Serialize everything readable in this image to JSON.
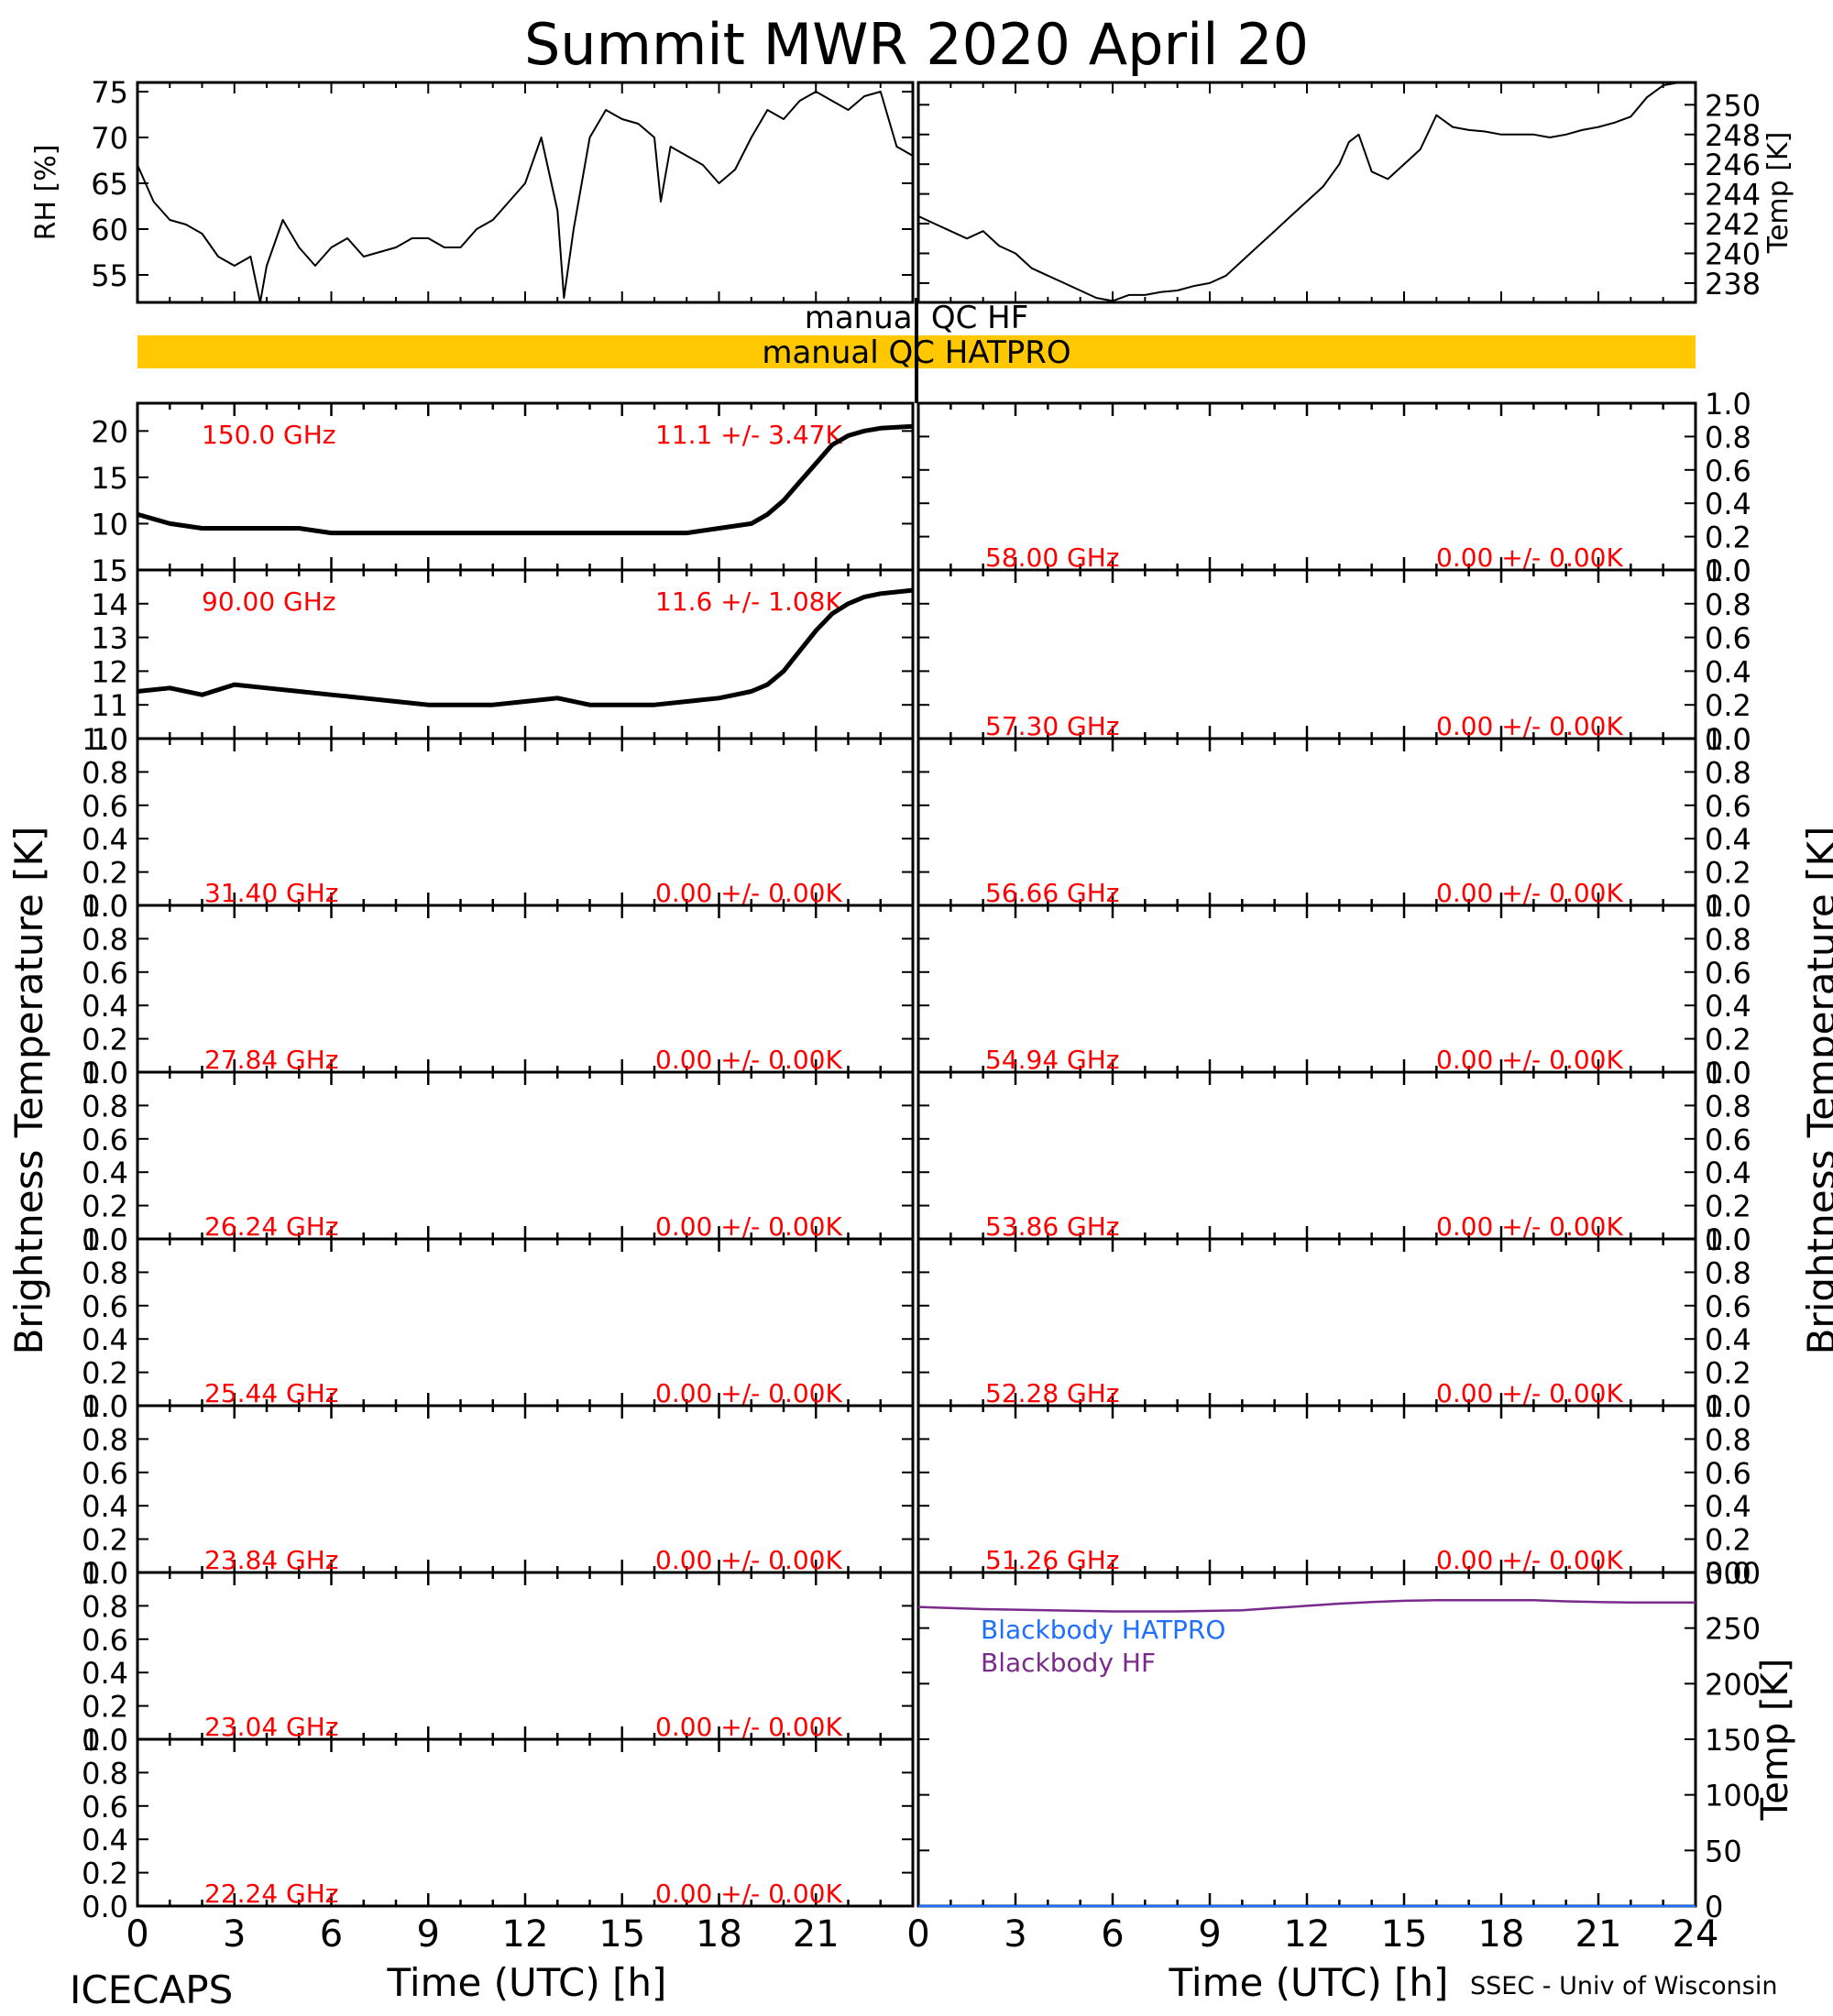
{
  "title": "Summit MWR 2020 April 20",
  "footer": {
    "left": "ICECAPS",
    "right": "SSEC - Univ of Wisconsin"
  },
  "colors": {
    "axis": "#000000",
    "label_red": "#ff0000",
    "qc_bar": "#ffc800",
    "bb_hatpro": "#1e6fff",
    "bb_hf": "#7a2a8a"
  },
  "qc": {
    "hf": "manual QC HF",
    "hatpro": "manual QC HATPRO"
  },
  "axes": {
    "time_label": "Time (UTC) [h]",
    "time_ticks": [
      "0",
      "3",
      "6",
      "9",
      "12",
      "15",
      "18",
      "21",
      "24"
    ],
    "tb_label": "Brightness Temperature [K]",
    "rh_label": "RH [%]",
    "temp_label": "Temp [K]"
  },
  "chart_data": [
    {
      "id": "rh",
      "type": "line",
      "ylabel": "RH [%]",
      "xlim": [
        0,
        24
      ],
      "ylim": [
        52,
        76
      ],
      "yticks": [
        55,
        60,
        65,
        70,
        75
      ],
      "x": [
        0,
        0.5,
        1,
        1.5,
        2,
        2.5,
        3,
        3.5,
        3.8,
        4,
        4.5,
        5,
        5.5,
        6,
        6.5,
        7,
        7.5,
        8,
        8.5,
        9,
        9.5,
        10,
        10.5,
        11,
        11.5,
        12,
        12.5,
        13,
        13.2,
        13.5,
        14,
        14.5,
        15,
        15.5,
        16,
        16.2,
        16.5,
        17,
        17.5,
        18,
        18.5,
        19,
        19.5,
        20,
        20.5,
        21,
        21.5,
        22,
        22.5,
        23,
        23.5,
        24
      ],
      "y": [
        67,
        63,
        61,
        60.5,
        59.5,
        57,
        56,
        57,
        52,
        56,
        61,
        58,
        56,
        58,
        59,
        57,
        57.5,
        58,
        59,
        59,
        58,
        58,
        60,
        61,
        63,
        65,
        70,
        62,
        52.5,
        60,
        70,
        73,
        72,
        71.5,
        70,
        63,
        69,
        68,
        67,
        65,
        66.5,
        70,
        73,
        72,
        74,
        75,
        74,
        73,
        74.5,
        75,
        69,
        68
      ]
    },
    {
      "id": "temp_air",
      "type": "line",
      "ylabel": "Temp [K]",
      "xlim": [
        0,
        24
      ],
      "ylim": [
        236.7,
        251.5
      ],
      "yticks": [
        238,
        240,
        242,
        244,
        246,
        248,
        250
      ],
      "x": [
        0,
        0.5,
        1,
        1.5,
        2,
        2.5,
        3,
        3.5,
        4,
        4.5,
        5,
        5.5,
        6,
        6.5,
        7,
        7.5,
        8,
        8.5,
        9,
        9.5,
        10,
        10.5,
        11,
        11.5,
        12,
        12.5,
        13,
        13.3,
        13.6,
        14,
        14.5,
        15,
        15.5,
        16,
        16.5,
        17,
        17.5,
        18,
        18.5,
        19,
        19.5,
        20,
        20.5,
        21,
        21.5,
        22,
        22.5,
        23,
        23.5,
        24
      ],
      "y": [
        242.5,
        242,
        241.5,
        241,
        241.5,
        240.5,
        240,
        239,
        238.5,
        238,
        237.5,
        237,
        236.8,
        237.2,
        237.2,
        237.4,
        237.5,
        237.8,
        238,
        238.5,
        239.5,
        240.5,
        241.5,
        242.5,
        243.5,
        244.5,
        246,
        247.5,
        248,
        245.5,
        245,
        246,
        247,
        249.3,
        248.5,
        248.3,
        248.2,
        248,
        248,
        248,
        247.8,
        248,
        248.3,
        248.5,
        248.8,
        249.2,
        250.5,
        251.3,
        251.5,
        251.5
      ]
    },
    {
      "id": "tb_150",
      "type": "line",
      "freq": "150.0 GHz",
      "stat": "11.1 +/- 3.47K",
      "ylim": [
        5,
        23
      ],
      "yticks": [
        10,
        15,
        20
      ],
      "x": [
        0,
        1,
        2,
        3,
        4,
        5,
        6,
        7,
        8,
        9,
        10,
        11,
        12,
        13,
        14,
        15,
        16,
        17,
        18,
        19,
        19.5,
        20,
        20.5,
        21,
        21.5,
        22,
        22.5,
        23,
        24
      ],
      "y": [
        11,
        10,
        9.5,
        9.5,
        9.5,
        9.5,
        9,
        9,
        9,
        9,
        9,
        9,
        9,
        9,
        9,
        9,
        9,
        9,
        9.5,
        10,
        11,
        12.5,
        14.5,
        16.5,
        18.5,
        19.5,
        20,
        20.3,
        20.5
      ]
    },
    {
      "id": "tb_58",
      "type": "line",
      "freq": "58.00 GHz",
      "stat": "0.00 +/- 0.00K",
      "ylim": [
        0,
        1
      ],
      "yticks": [
        0,
        0.2,
        0.4,
        0.6,
        0.8,
        1.0
      ],
      "x": [],
      "y": []
    },
    {
      "id": "tb_90",
      "type": "line",
      "freq": "90.00 GHz",
      "stat": "11.6 +/- 1.08K",
      "ylim": [
        10,
        15
      ],
      "yticks": [
        10,
        11,
        12,
        13,
        14,
        15
      ],
      "x": [
        0,
        1,
        2,
        3,
        4,
        5,
        6,
        7,
        8,
        9,
        10,
        11,
        12,
        13,
        14,
        15,
        16,
        17,
        18,
        18.5,
        19,
        19.5,
        20,
        20.5,
        21,
        21.5,
        22,
        22.5,
        23,
        24
      ],
      "y": [
        11.4,
        11.5,
        11.3,
        11.6,
        11.5,
        11.4,
        11.3,
        11.2,
        11.1,
        11,
        11,
        11,
        11.1,
        11.2,
        11,
        11,
        11,
        11.1,
        11.2,
        11.3,
        11.4,
        11.6,
        12,
        12.6,
        13.2,
        13.7,
        14,
        14.2,
        14.3,
        14.4
      ]
    },
    {
      "id": "tb_57",
      "type": "line",
      "freq": "57.30 GHz",
      "stat": "0.00 +/- 0.00K",
      "ylim": [
        0,
        1
      ],
      "yticks": [
        0,
        0.2,
        0.4,
        0.6,
        0.8,
        1.0
      ],
      "x": [],
      "y": []
    },
    {
      "id": "tb_31",
      "type": "line",
      "freq": "31.40 GHz",
      "stat": "0.00 +/- 0.00K",
      "ylim": [
        0,
        1
      ],
      "yticks": [
        0,
        0.2,
        0.4,
        0.6,
        0.8,
        1.0
      ],
      "x": [],
      "y": []
    },
    {
      "id": "tb_56",
      "type": "line",
      "freq": "56.66 GHz",
      "stat": "0.00 +/- 0.00K",
      "ylim": [
        0,
        1
      ],
      "yticks": [
        0,
        0.2,
        0.4,
        0.6,
        0.8,
        1.0
      ],
      "x": [],
      "y": []
    },
    {
      "id": "tb_27",
      "type": "line",
      "freq": "27.84 GHz",
      "stat": "0.00 +/- 0.00K",
      "ylim": [
        0,
        1
      ],
      "yticks": [
        0,
        0.2,
        0.4,
        0.6,
        0.8,
        1.0
      ],
      "x": [],
      "y": []
    },
    {
      "id": "tb_54",
      "type": "line",
      "freq": "54.94 GHz",
      "stat": "0.00 +/- 0.00K",
      "ylim": [
        0,
        1
      ],
      "yticks": [
        0,
        0.2,
        0.4,
        0.6,
        0.8,
        1.0
      ],
      "x": [],
      "y": []
    },
    {
      "id": "tb_26",
      "type": "line",
      "freq": "26.24 GHz",
      "stat": "0.00 +/- 0.00K",
      "ylim": [
        0,
        1
      ],
      "yticks": [
        0,
        0.2,
        0.4,
        0.6,
        0.8,
        1.0
      ],
      "x": [],
      "y": []
    },
    {
      "id": "tb_53",
      "type": "line",
      "freq": "53.86 GHz",
      "stat": "0.00 +/- 0.00K",
      "ylim": [
        0,
        1
      ],
      "yticks": [
        0,
        0.2,
        0.4,
        0.6,
        0.8,
        1.0
      ],
      "x": [],
      "y": []
    },
    {
      "id": "tb_25",
      "type": "line",
      "freq": "25.44 GHz",
      "stat": "0.00 +/- 0.00K",
      "ylim": [
        0,
        1
      ],
      "yticks": [
        0,
        0.2,
        0.4,
        0.6,
        0.8,
        1.0
      ],
      "x": [],
      "y": []
    },
    {
      "id": "tb_52",
      "type": "line",
      "freq": "52.28 GHz",
      "stat": "0.00 +/- 0.00K",
      "ylim": [
        0,
        1
      ],
      "yticks": [
        0,
        0.2,
        0.4,
        0.6,
        0.8,
        1.0
      ],
      "x": [],
      "y": []
    },
    {
      "id": "tb_23_84",
      "type": "line",
      "freq": "23.84 GHz",
      "stat": "0.00 +/- 0.00K",
      "ylim": [
        0,
        1
      ],
      "yticks": [
        0,
        0.2,
        0.4,
        0.6,
        0.8,
        1.0
      ],
      "x": [],
      "y": []
    },
    {
      "id": "tb_51",
      "type": "line",
      "freq": "51.26 GHz",
      "stat": "0.00 +/- 0.00K",
      "ylim": [
        0,
        1
      ],
      "yticks": [
        0,
        0.2,
        0.4,
        0.6,
        0.8,
        1.0
      ],
      "x": [],
      "y": []
    },
    {
      "id": "tb_23_04",
      "type": "line",
      "freq": "23.04 GHz",
      "stat": "0.00 +/- 0.00K",
      "ylim": [
        0,
        1
      ],
      "yticks": [
        0,
        0.2,
        0.4,
        0.6,
        0.8,
        1.0
      ],
      "x": [],
      "y": []
    },
    {
      "id": "tb_22",
      "type": "line",
      "freq": "22.24 GHz",
      "stat": "0.00 +/- 0.00K",
      "ylim": [
        0,
        1
      ],
      "yticks": [
        0,
        0.2,
        0.4,
        0.6,
        0.8,
        1.0
      ],
      "x": [],
      "y": []
    },
    {
      "id": "blackbody",
      "type": "line",
      "ylabel": "Temp [K]",
      "xlim": [
        0,
        24
      ],
      "ylim": [
        0,
        300
      ],
      "yticks": [
        0,
        50,
        100,
        150,
        200,
        250,
        300
      ],
      "series": [
        {
          "name": "Blackbody HATPRO",
          "x": [
            0,
            24
          ],
          "y": [
            0,
            0
          ]
        },
        {
          "name": "Blackbody HF",
          "x": [
            0,
            2,
            4,
            6,
            8,
            9,
            10,
            11,
            12,
            13,
            14,
            15,
            16,
            17,
            18,
            19,
            20,
            21,
            22,
            23,
            24
          ],
          "y": [
            269,
            267,
            266,
            265,
            265,
            265.5,
            266,
            268,
            270,
            272,
            273.5,
            274.5,
            275,
            275,
            275,
            275,
            274,
            273.5,
            273,
            273,
            273
          ]
        }
      ]
    }
  ]
}
